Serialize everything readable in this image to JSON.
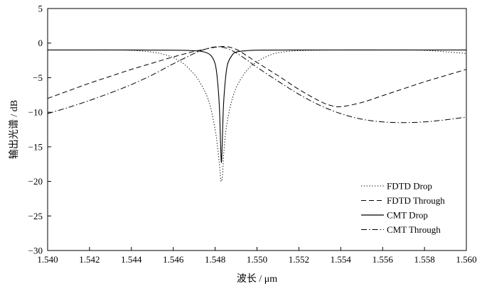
{
  "chart_data": {
    "type": "line",
    "xlabel": "波长 / μm",
    "ylabel": "输出光谱 / dB",
    "xlim": [
      1.54,
      1.56
    ],
    "ylim": [
      -30,
      5
    ],
    "xticks": [
      "1.540",
      "1.542",
      "1.544",
      "1.546",
      "1.548",
      "1.550",
      "1.552",
      "1.554",
      "1.556",
      "1.558",
      "1.560"
    ],
    "yticks": [
      "5",
      "0",
      "−5",
      "−10",
      "−15",
      "−20",
      "−25",
      "−30"
    ],
    "grid": false,
    "legend_position": "bottom-right",
    "series": [
      {
        "name": "FDTD Drop",
        "style": "dotted",
        "points": [
          [
            1.54,
            -1.0
          ],
          [
            1.542,
            -1.0
          ],
          [
            1.543,
            -1.0
          ],
          [
            1.544,
            -1.05
          ],
          [
            1.545,
            -1.3
          ],
          [
            1.5455,
            -1.6
          ],
          [
            1.546,
            -2.1
          ],
          [
            1.5465,
            -3.0
          ],
          [
            1.547,
            -4.5
          ],
          [
            1.5473,
            -5.8
          ],
          [
            1.5476,
            -7.6
          ],
          [
            1.5478,
            -9.5
          ],
          [
            1.548,
            -12.5
          ],
          [
            1.5481,
            -14.6
          ],
          [
            1.5482,
            -17.3
          ],
          [
            1.54826,
            -19.5
          ],
          [
            1.5483,
            -20.0
          ],
          [
            1.54836,
            -19.0
          ],
          [
            1.5484,
            -16.5
          ],
          [
            1.5485,
            -13.0
          ],
          [
            1.5487,
            -9.5
          ],
          [
            1.549,
            -6.5
          ],
          [
            1.5495,
            -4.0
          ],
          [
            1.55,
            -2.7
          ],
          [
            1.5505,
            -1.9
          ],
          [
            1.551,
            -1.4
          ],
          [
            1.552,
            -1.1
          ],
          [
            1.554,
            -1.0
          ],
          [
            1.556,
            -1.0
          ],
          [
            1.558,
            -1.05
          ],
          [
            1.56,
            -1.5
          ]
        ]
      },
      {
        "name": "FDTD Through",
        "style": "dashed",
        "points": [
          [
            1.54,
            -8.0
          ],
          [
            1.541,
            -6.9
          ],
          [
            1.542,
            -5.8
          ],
          [
            1.543,
            -4.8
          ],
          [
            1.544,
            -3.8
          ],
          [
            1.545,
            -2.9
          ],
          [
            1.546,
            -2.0
          ],
          [
            1.547,
            -1.2
          ],
          [
            1.5475,
            -0.9
          ],
          [
            1.548,
            -0.6
          ],
          [
            1.5485,
            -0.5
          ],
          [
            1.549,
            -0.9
          ],
          [
            1.5495,
            -1.8
          ],
          [
            1.55,
            -2.8
          ],
          [
            1.551,
            -4.7
          ],
          [
            1.552,
            -6.7
          ],
          [
            1.553,
            -8.4
          ],
          [
            1.5535,
            -9.0
          ],
          [
            1.554,
            -9.2
          ],
          [
            1.555,
            -8.6
          ],
          [
            1.556,
            -7.6
          ],
          [
            1.557,
            -6.6
          ],
          [
            1.558,
            -5.6
          ],
          [
            1.559,
            -4.7
          ],
          [
            1.56,
            -3.8
          ]
        ]
      },
      {
        "name": "CMT Drop",
        "style": "solid",
        "points": [
          [
            1.54,
            -1.0
          ],
          [
            1.544,
            -1.0
          ],
          [
            1.546,
            -1.02
          ],
          [
            1.547,
            -1.1
          ],
          [
            1.5475,
            -1.3
          ],
          [
            1.5478,
            -1.8
          ],
          [
            1.548,
            -3.0
          ],
          [
            1.5481,
            -5.0
          ],
          [
            1.5482,
            -9.0
          ],
          [
            1.54826,
            -14.5
          ],
          [
            1.5483,
            -17.3
          ],
          [
            1.54834,
            -14.5
          ],
          [
            1.5484,
            -9.0
          ],
          [
            1.5485,
            -5.0
          ],
          [
            1.5486,
            -3.0
          ],
          [
            1.5488,
            -1.8
          ],
          [
            1.549,
            -1.3
          ],
          [
            1.5495,
            -1.1
          ],
          [
            1.55,
            -1.02
          ],
          [
            1.552,
            -1.0
          ],
          [
            1.56,
            -1.0
          ]
        ]
      },
      {
        "name": "CMT Through",
        "style": "dashdot",
        "points": [
          [
            1.54,
            -10.2
          ],
          [
            1.541,
            -9.3
          ],
          [
            1.542,
            -8.3
          ],
          [
            1.543,
            -7.2
          ],
          [
            1.544,
            -6.0
          ],
          [
            1.545,
            -4.6
          ],
          [
            1.546,
            -3.0
          ],
          [
            1.547,
            -1.5
          ],
          [
            1.5475,
            -0.9
          ],
          [
            1.548,
            -0.55
          ],
          [
            1.5485,
            -0.7
          ],
          [
            1.549,
            -1.4
          ],
          [
            1.5495,
            -2.4
          ],
          [
            1.55,
            -3.5
          ],
          [
            1.551,
            -5.5
          ],
          [
            1.552,
            -7.4
          ],
          [
            1.553,
            -9.0
          ],
          [
            1.554,
            -10.2
          ],
          [
            1.555,
            -11.0
          ],
          [
            1.556,
            -11.4
          ],
          [
            1.557,
            -11.5
          ],
          [
            1.558,
            -11.4
          ],
          [
            1.559,
            -11.1
          ],
          [
            1.56,
            -10.7
          ]
        ]
      }
    ]
  }
}
